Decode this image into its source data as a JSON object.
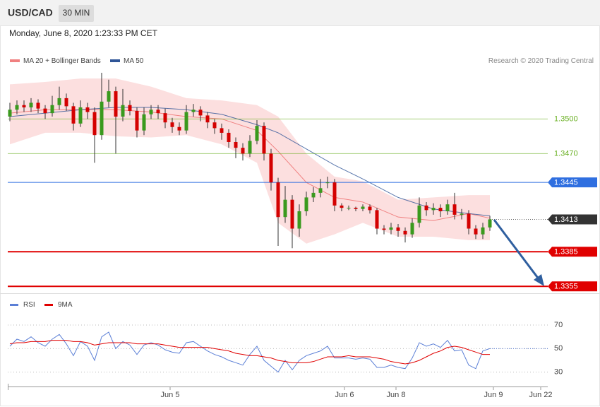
{
  "header": {
    "symbol": "USD/CAD",
    "interval": "30 MIN",
    "date": "Monday, June 8, 2020 1:23:33 PM CET"
  },
  "chart_data": {
    "type": "candlestick",
    "credit": "Research © 2020 Trading Central",
    "up_color": "#3a9a1e",
    "down_color": "#d40000",
    "ylim": [
      1.3349,
      1.3581
    ],
    "xlim": [
      -0.3,
      76.2
    ],
    "xticks": [
      {
        "value": 22.7,
        "label": "Jun 5"
      },
      {
        "value": 47.4,
        "label": "Jun 6"
      },
      {
        "value": 54.7,
        "label": "Jun 8"
      },
      {
        "value": 68.5,
        "label": "Jun 9"
      },
      {
        "value": 75.2,
        "label": "Jun 22"
      }
    ],
    "ohlc": [
      [
        1.3502,
        1.3514,
        1.3498,
        1.3508
      ],
      [
        1.3508,
        1.3516,
        1.3504,
        1.3512
      ],
      [
        1.3512,
        1.3516,
        1.3506,
        1.351
      ],
      [
        1.351,
        1.3518,
        1.3506,
        1.3514
      ],
      [
        1.3514,
        1.3517,
        1.3505,
        1.3509
      ],
      [
        1.3509,
        1.3512,
        1.35,
        1.3505
      ],
      [
        1.3505,
        1.352,
        1.3502,
        1.3512
      ],
      [
        1.3512,
        1.3528,
        1.3508,
        1.3518
      ],
      [
        1.3518,
        1.3522,
        1.3507,
        1.3511
      ],
      [
        1.3511,
        1.3514,
        1.349,
        1.3496
      ],
      [
        1.3496,
        1.3516,
        1.3493,
        1.351
      ],
      [
        1.351,
        1.3514,
        1.35,
        1.3506
      ],
      [
        1.3506,
        1.351,
        1.3462,
        1.3486
      ],
      [
        1.3486,
        1.354,
        1.3482,
        1.3515
      ],
      [
        1.3515,
        1.3534,
        1.351,
        1.3524
      ],
      [
        1.3524,
        1.3528,
        1.347,
        1.3502
      ],
      [
        1.3502,
        1.3526,
        1.3498,
        1.3512
      ],
      [
        1.3512,
        1.3516,
        1.3503,
        1.3507
      ],
      [
        1.3507,
        1.351,
        1.3484,
        1.349
      ],
      [
        1.349,
        1.351,
        1.3486,
        1.3504
      ],
      [
        1.3504,
        1.3512,
        1.35,
        1.3508
      ],
      [
        1.3508,
        1.3512,
        1.35,
        1.3505
      ],
      [
        1.3505,
        1.3509,
        1.3492,
        1.3497
      ],
      [
        1.3497,
        1.3501,
        1.3488,
        1.3493
      ],
      [
        1.3493,
        1.3497,
        1.3486,
        1.349
      ],
      [
        1.349,
        1.3512,
        1.3487,
        1.3506
      ],
      [
        1.3506,
        1.3513,
        1.3502,
        1.3508
      ],
      [
        1.3508,
        1.3511,
        1.3498,
        1.3503
      ],
      [
        1.3503,
        1.3506,
        1.3492,
        1.3497
      ],
      [
        1.3497,
        1.35,
        1.3487,
        1.3492
      ],
      [
        1.3492,
        1.3496,
        1.3482,
        1.3488
      ],
      [
        1.3488,
        1.3491,
        1.3475,
        1.348
      ],
      [
        1.348,
        1.3484,
        1.3466,
        1.3475
      ],
      [
        1.3475,
        1.3479,
        1.3464,
        1.347
      ],
      [
        1.347,
        1.3486,
        1.3467,
        1.3481
      ],
      [
        1.3481,
        1.3499,
        1.3478,
        1.3494
      ],
      [
        1.3494,
        1.3497,
        1.3464,
        1.347
      ],
      [
        1.347,
        1.3474,
        1.3438,
        1.3445
      ],
      [
        1.3445,
        1.3449,
        1.339,
        1.3415
      ],
      [
        1.3415,
        1.3442,
        1.341,
        1.343
      ],
      [
        1.343,
        1.3434,
        1.3388,
        1.3405
      ],
      [
        1.3405,
        1.3426,
        1.3398,
        1.342
      ],
      [
        1.342,
        1.3437,
        1.3416,
        1.3432
      ],
      [
        1.3432,
        1.3441,
        1.3428,
        1.3436
      ],
      [
        1.3436,
        1.3448,
        1.3432,
        1.344
      ],
      [
        1.3445,
        1.345,
        1.344,
        1.3445
      ],
      [
        1.3445,
        1.3448,
        1.342,
        1.3425
      ],
      [
        1.3425,
        1.3427,
        1.342,
        1.3423
      ],
      [
        1.3423,
        1.3425,
        1.3421,
        1.3423
      ],
      [
        1.3423,
        1.3424,
        1.342,
        1.3422
      ],
      [
        1.3422,
        1.3426,
        1.342,
        1.3424
      ],
      [
        1.3424,
        1.3426,
        1.3418,
        1.3421
      ],
      [
        1.3421,
        1.3423,
        1.34,
        1.3405
      ],
      [
        1.3405,
        1.3408,
        1.34,
        1.3404
      ],
      [
        1.3404,
        1.341,
        1.34,
        1.3406
      ],
      [
        1.3406,
        1.3409,
        1.3398,
        1.3403
      ],
      [
        1.3403,
        1.3406,
        1.3393,
        1.34
      ],
      [
        1.34,
        1.3414,
        1.3397,
        1.341
      ],
      [
        1.341,
        1.3432,
        1.3406,
        1.3425
      ],
      [
        1.3425,
        1.3428,
        1.3416,
        1.3421
      ],
      [
        1.3421,
        1.3427,
        1.3417,
        1.3423
      ],
      [
        1.3423,
        1.3426,
        1.3415,
        1.342
      ],
      [
        1.342,
        1.343,
        1.3417,
        1.3426
      ],
      [
        1.3426,
        1.3436,
        1.3413,
        1.3417
      ],
      [
        1.3417,
        1.3422,
        1.3413,
        1.3418
      ],
      [
        1.3418,
        1.3421,
        1.34,
        1.3405
      ],
      [
        1.3405,
        1.3408,
        1.3396,
        1.34
      ],
      [
        1.34,
        1.341,
        1.3396,
        1.3406
      ],
      [
        1.3406,
        1.3416,
        1.3403,
        1.3413
      ]
    ],
    "bollinger": {
      "name": "MA 20 + Bollinger Bands",
      "color": "#f08080",
      "band_color": "#fbd9d9",
      "x": [
        0,
        5,
        10,
        15,
        20,
        25,
        30,
        35,
        38,
        42,
        46,
        50,
        55,
        60,
        65,
        68
      ],
      "middle": [
        1.3505,
        1.3508,
        1.3508,
        1.3508,
        1.3506,
        1.3502,
        1.35,
        1.349,
        1.3472,
        1.3445,
        1.3432,
        1.3428,
        1.3415,
        1.3412,
        1.3418,
        1.3414
      ],
      "upper": [
        1.353,
        1.3532,
        1.3535,
        1.3535,
        1.3528,
        1.3518,
        1.3516,
        1.3512,
        1.3502,
        1.347,
        1.345,
        1.3446,
        1.343,
        1.3432,
        1.3434,
        1.3434
      ],
      "lower": [
        1.3478,
        1.3488,
        1.3488,
        1.3485,
        1.3484,
        1.3486,
        1.3478,
        1.3462,
        1.341,
        1.3392,
        1.34,
        1.341,
        1.3398,
        1.3398,
        1.3395,
        1.3395
      ]
    },
    "ma50": {
      "name": "MA 50",
      "color": "#2f5597",
      "x": [
        0,
        5,
        10,
        15,
        20,
        25,
        30,
        35,
        38,
        42,
        46,
        50,
        55,
        60,
        65,
        68
      ],
      "values": [
        1.3502,
        1.3505,
        1.3508,
        1.351,
        1.351,
        1.3508,
        1.3504,
        1.3495,
        1.3488,
        1.3474,
        1.346,
        1.3448,
        1.3432,
        1.3422,
        1.3418,
        1.3416
      ]
    },
    "levels": [
      {
        "value": 1.35,
        "label": "1.3500",
        "color": "#6ab023",
        "boxed": false,
        "width": 1
      },
      {
        "value": 1.347,
        "label": "1.3470",
        "color": "#6ab023",
        "boxed": false,
        "width": 1
      },
      {
        "value": 1.3445,
        "label": "1.3445",
        "color": "#2f6fe0",
        "boxed": true,
        "width": 1
      },
      {
        "value": 1.3413,
        "label": "1.3413",
        "color": "#333333",
        "boxed": true,
        "width": 1
      },
      {
        "value": 1.3385,
        "label": "1.3385",
        "color": "#e00000",
        "boxed": true,
        "width": 2
      },
      {
        "value": 1.3355,
        "label": "1.3355",
        "color": "#e00000",
        "boxed": true,
        "width": 2
      }
    ],
    "rsi_panel": {
      "ylim": [
        19,
        94
      ],
      "yticks": [
        70,
        50,
        30
      ],
      "series": [
        {
          "name": "RSI",
          "color": "#5b7fd6",
          "values": [
            52,
            58,
            56,
            60,
            55,
            52,
            58,
            62,
            54,
            44,
            56,
            52,
            40,
            60,
            64,
            50,
            56,
            53,
            45,
            53,
            55,
            53,
            49,
            47,
            46,
            55,
            56,
            52,
            48,
            45,
            43,
            40,
            38,
            36,
            45,
            52,
            40,
            35,
            30,
            40,
            32,
            40,
            44,
            46,
            48,
            52,
            42,
            42,
            42,
            41,
            42,
            41,
            34,
            34,
            36,
            34,
            33,
            42,
            55,
            52,
            54,
            51,
            57,
            48,
            49,
            36,
            33,
            48,
            50
          ]
        },
        {
          "name": "9MA",
          "color": "#e00000",
          "values": [
            54,
            55,
            55,
            56,
            56,
            56,
            57,
            57,
            57,
            56,
            56,
            55,
            53,
            54,
            55,
            55,
            55,
            55,
            54,
            54,
            54,
            54,
            53,
            52,
            51,
            51,
            51,
            51,
            51,
            50,
            49,
            48,
            46,
            45,
            44,
            44,
            43,
            42,
            40,
            39,
            38,
            38,
            38,
            39,
            41,
            43,
            43,
            43,
            44,
            43,
            43,
            43,
            42,
            41,
            39,
            38,
            37,
            38,
            40,
            43,
            46,
            48,
            51,
            52,
            51,
            49,
            47,
            45,
            45
          ]
        }
      ]
    }
  }
}
